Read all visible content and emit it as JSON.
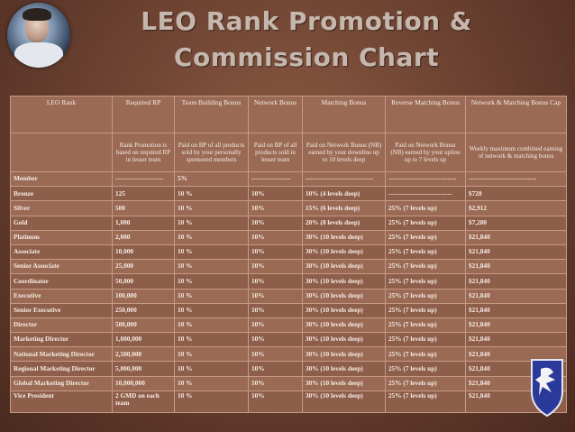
{
  "title_line1": "LEO Rank Promotion &",
  "title_line2": "Commission Chart",
  "headers": [
    "LEO Rank",
    "Required RP",
    "Team Building Bonus",
    "Network Bonus",
    "Matching Bonus",
    "Reverse Matching Bonus",
    "Network & Matching Bonus Cap"
  ],
  "descriptions": [
    "",
    "Rank Promotion is based on required RP in lesser team",
    "Paid on BP of all products sold by your personally sponsored members",
    "Paid on BP of all products sold in lesser team",
    "Paid on Network Bonus (NB) earned by your downline up to 10 levels deep",
    "Paid on Network Bonus (NB) earned by your upline up to 7 levels up",
    "Weekly maximum combined earning of network & matching bonus"
  ],
  "rows": [
    [
      "Member",
      "----------------------",
      "5%",
      "------------------",
      "-------------------------------",
      "-------------------------------",
      "-------------------------------"
    ],
    [
      "Bronze",
      "125",
      "10 %",
      "10%",
      "10% (4 levels deep)",
      "-----------------------------",
      "$728"
    ],
    [
      "Silver",
      "500",
      "10 %",
      "10%",
      "15% (6 levels deep)",
      "25% (7 levels up)",
      "$2,912"
    ],
    [
      "Gold",
      "1,000",
      "10 %",
      "10%",
      "20% (8 levels deep)",
      "25% (7 levels up)",
      "$7,280"
    ],
    [
      "Platinum",
      "2,000",
      "10 %",
      "10%",
      "30% (10 levels deep)",
      "25% (7 levels up)",
      "$21,840"
    ],
    [
      "Associate",
      "10,000",
      "10 %",
      "10%",
      "30% (10 levels deep)",
      "25% (7 levels up)",
      "$21,840"
    ],
    [
      "Senior Associate",
      "25,000",
      "10 %",
      "10%",
      "30% (10 levels deep)",
      "25% (7 levels up)",
      "$21,840"
    ],
    [
      "Coordinator",
      "50,000",
      "10 %",
      "10%",
      "30% (10 levels deep)",
      "25% (7 levels up)",
      "$21,840"
    ],
    [
      "Executive",
      "100,000",
      "10 %",
      "10%",
      "30% (10 levels deep)",
      "25% (7 levels up)",
      "$21,840"
    ],
    [
      "Senior Executive",
      "250,000",
      "10 %",
      "10%",
      "30% (10 levels deep)",
      "25% (7 levels up)",
      "$21,840"
    ],
    [
      "Director",
      "500,000",
      "10 %",
      "10%",
      "30% (10 levels deep)",
      "25% (7 levels up)",
      "$21,840"
    ],
    [
      "Marketing Director",
      "1,000,000",
      "10 %",
      "10%",
      "30% (10 levels deep)",
      "25% (7 levels up)",
      "$21,840"
    ],
    [
      "National Marketing Director",
      "2,500,000",
      "10 %",
      "10%",
      "30% (10 levels deep)",
      "25% (7 levels up)",
      "$21,840"
    ],
    [
      "Regional Marketing Director",
      "5,000,000",
      "10 %",
      "10%",
      "30% (10 levels deep)",
      "25% (7 levels up)",
      "$21,840"
    ],
    [
      "Global Marketing Director",
      "10,000,000",
      "10 %",
      "10%",
      "30% (10 levels deep)",
      "25% (7 levels up)",
      "$21,840"
    ],
    [
      "Vice President",
      "2 GMD on each team",
      "10 %",
      "10%",
      "30% (10 levels deep)",
      "25% (7 levels up)",
      "$21,840"
    ]
  ],
  "colors": {
    "background": "#6e4332",
    "table": "#9a6a55",
    "title": "#c5b7ad",
    "emblem": "#2b3a9a"
  },
  "icons": {
    "photo": "person-photo",
    "emblem": "shield-emblem-icon"
  }
}
